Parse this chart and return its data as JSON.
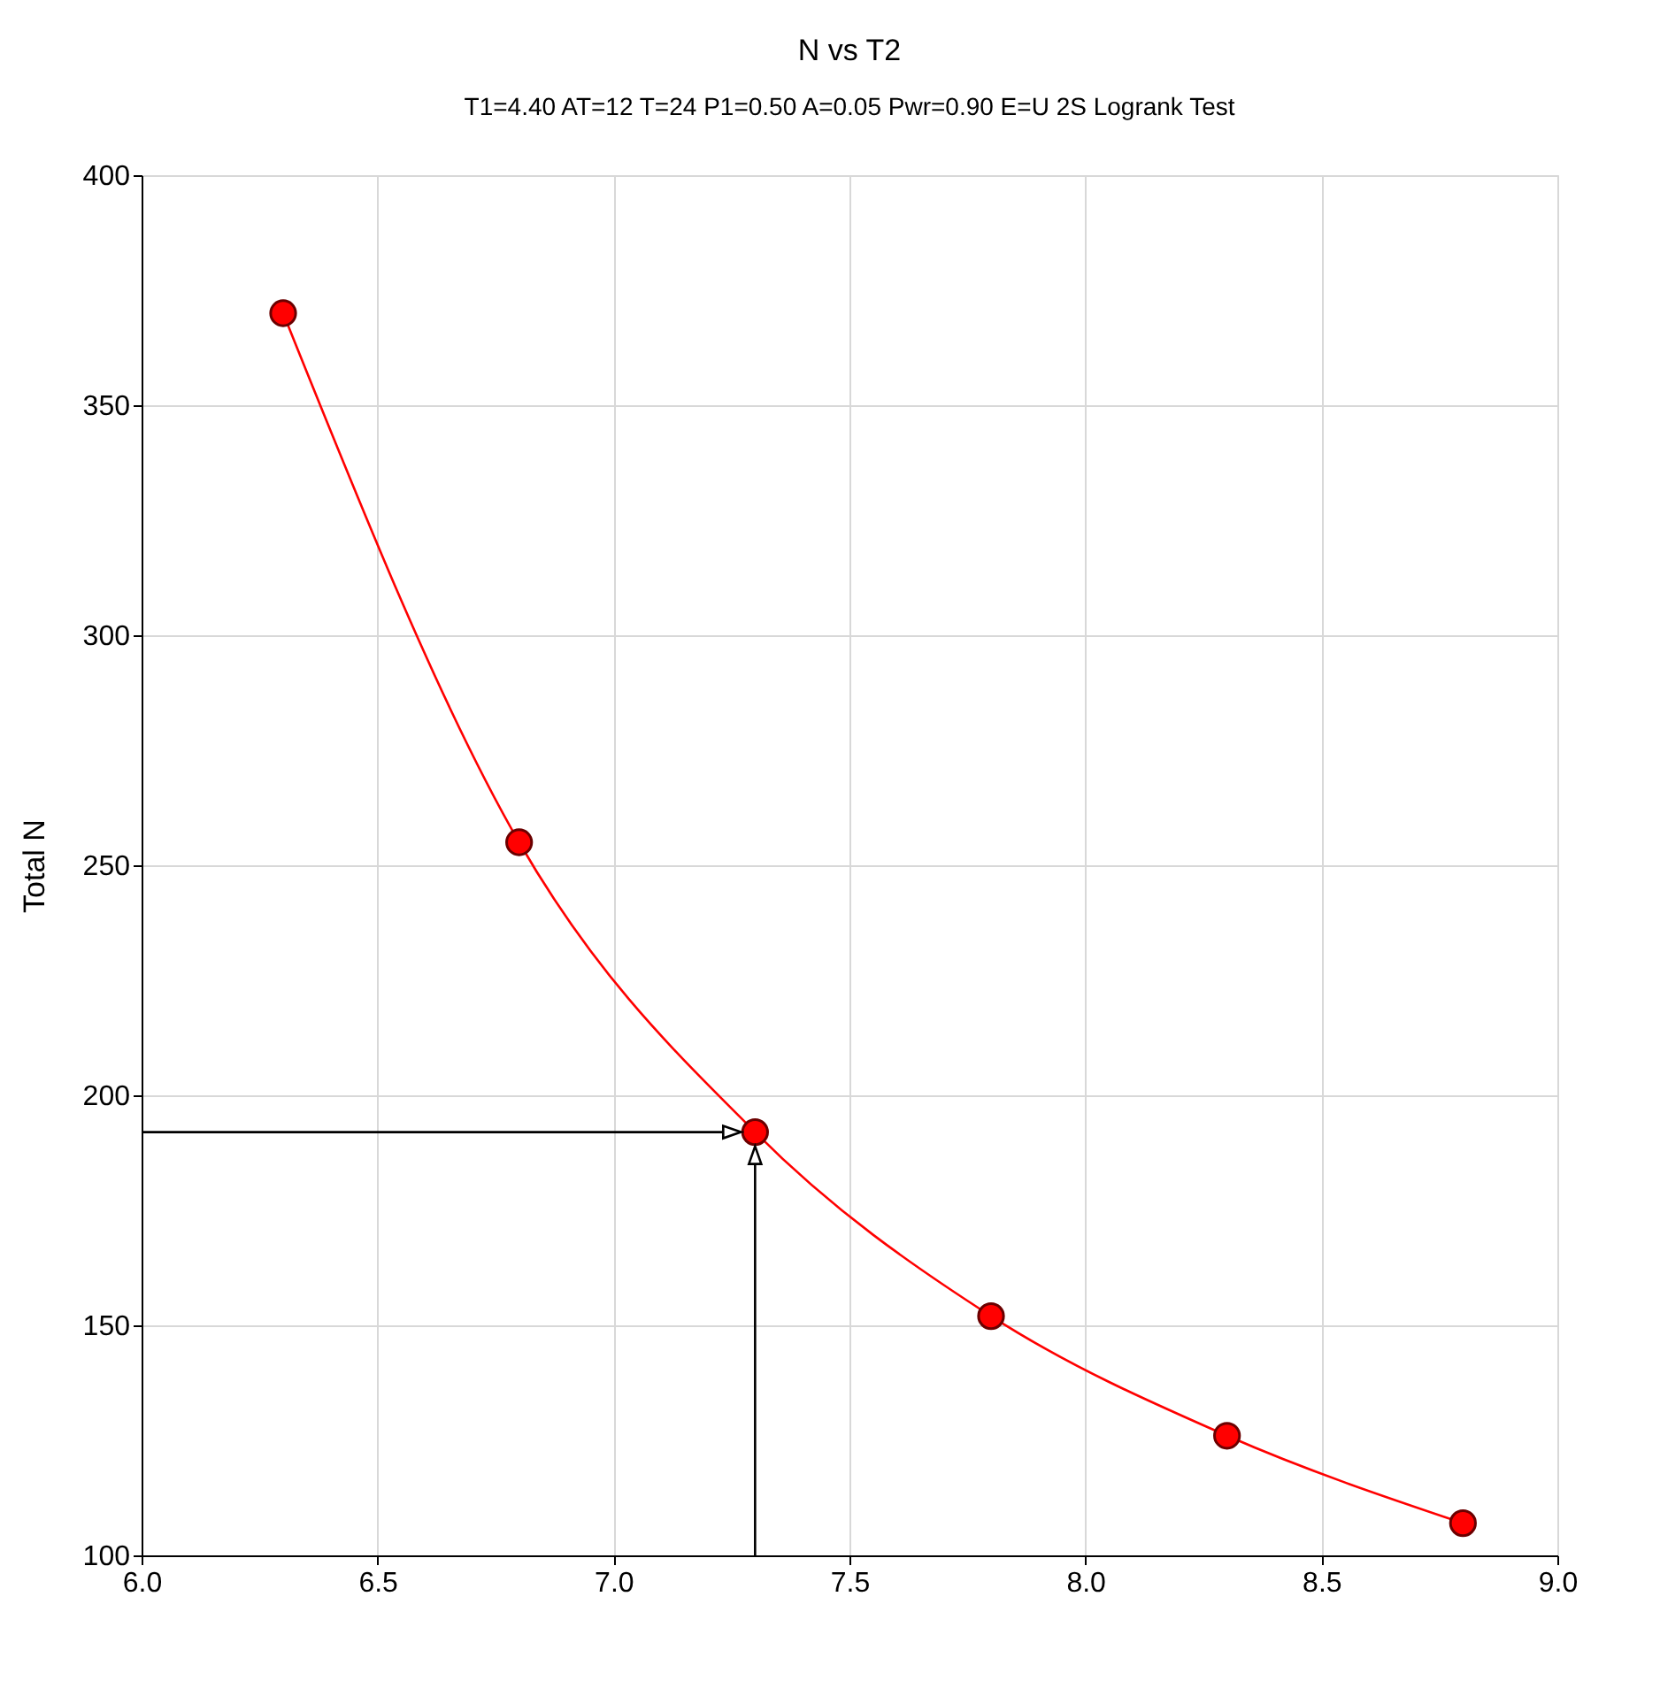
{
  "chart_data": {
    "type": "line",
    "title": "N vs T2",
    "subtitle": "T1=4.40 AT=12 T=24 P1=0.50 A=0.05 Pwr=0.90 E=U 2S Logrank Test",
    "ylabel": "Total N",
    "x": [
      6.3,
      6.8,
      7.3,
      7.8,
      8.3,
      8.8
    ],
    "series": [
      {
        "color": "#ff0000",
        "values": [
          370,
          255,
          192,
          152,
          126,
          107
        ]
      }
    ],
    "marker": "circle",
    "line_style": "solid",
    "grid": true,
    "legend": false,
    "xlim": [
      6.0,
      9.0
    ],
    "xticks": [
      {
        "value": 6.0,
        "label": "6.0"
      },
      {
        "value": 6.5,
        "label": "6.5"
      },
      {
        "value": 7.0,
        "label": "7.0"
      },
      {
        "value": 7.5,
        "label": "7.5"
      },
      {
        "value": 8.0,
        "label": "8.0"
      },
      {
        "value": 8.5,
        "label": "8.5"
      },
      {
        "value": 9.0,
        "label": "9.0"
      }
    ],
    "ylim": [
      100,
      400
    ],
    "yticks": [
      100,
      150,
      200,
      250,
      300,
      350,
      400
    ],
    "ref_lines": [
      {
        "axis": "y",
        "value": 192,
        "color": "#000000"
      },
      {
        "axis": "x",
        "value": 7.3,
        "color": "#000000"
      }
    ]
  }
}
